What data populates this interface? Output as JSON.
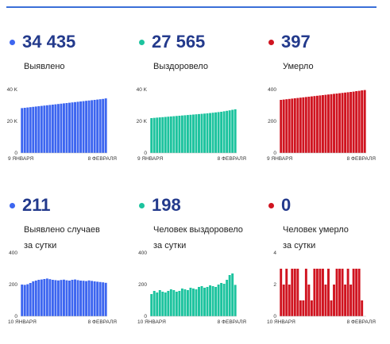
{
  "colors": {
    "blue": "#3d66f0",
    "green": "#1cc39e",
    "red": "#d01420",
    "header_line": "#3a6fd8",
    "value_text": "#233a8c"
  },
  "panels": [
    {
      "id": "detected-total",
      "value": "34 435",
      "label": [
        "Выявлено"
      ],
      "color": "blue",
      "chart_data": {
        "type": "bar",
        "ylim": [
          0,
          40000
        ],
        "yticks": [
          {
            "v": 0,
            "label": "0"
          },
          {
            "v": 20000,
            "label": "20 K"
          },
          {
            "v": 40000,
            "label": "40 K"
          }
        ],
        "xlabels": [
          "9 ЯНВАРЯ",
          "8 ФЕВРАЛЯ"
        ],
        "values": [
          28300,
          28500,
          28700,
          28900,
          29100,
          29300,
          29500,
          29700,
          29900,
          30100,
          30300,
          30500,
          30700,
          30900,
          31100,
          31300,
          31500,
          31700,
          31900,
          32100,
          32300,
          32500,
          32700,
          32900,
          33100,
          33300,
          33500,
          33700,
          33900,
          34100,
          34435
        ]
      }
    },
    {
      "id": "recovered-total",
      "value": "27 565",
      "label": [
        "Выздоровело"
      ],
      "color": "green",
      "chart_data": {
        "type": "bar",
        "ylim": [
          0,
          40000
        ],
        "yticks": [
          {
            "v": 0,
            "label": "0"
          },
          {
            "v": 20000,
            "label": "20 K"
          },
          {
            "v": 40000,
            "label": "40 K"
          }
        ],
        "xlabels": [
          "9 ЯНВАРЯ",
          "8 ФЕВРАЛЯ"
        ],
        "values": [
          22000,
          22150,
          22300,
          22450,
          22600,
          22750,
          22900,
          23050,
          23200,
          23350,
          23500,
          23650,
          23800,
          23950,
          24100,
          24250,
          24400,
          24550,
          24700,
          24850,
          25000,
          25200,
          25400,
          25600,
          25800,
          26000,
          26300,
          26600,
          26900,
          27250,
          27565
        ]
      }
    },
    {
      "id": "deaths-total",
      "value": "397",
      "label": [
        "Умерло"
      ],
      "color": "red",
      "chart_data": {
        "type": "bar",
        "ylim": [
          0,
          400
        ],
        "yticks": [
          {
            "v": 0,
            "label": "0"
          },
          {
            "v": 200,
            "label": "200"
          },
          {
            "v": 400,
            "label": "400"
          }
        ],
        "xlabels": [
          "9 ЯНВАРЯ",
          "8 ФЕВРАЛЯ"
        ],
        "values": [
          335,
          337,
          339,
          341,
          343,
          345,
          347,
          349,
          351,
          353,
          355,
          357,
          359,
          361,
          363,
          365,
          367,
          369,
          371,
          373,
          375,
          377,
          379,
          381,
          383,
          385,
          387,
          390,
          392,
          395,
          397
        ]
      }
    },
    {
      "id": "detected-daily",
      "value": "211",
      "label": [
        "Выявлено случаев",
        "за сутки"
      ],
      "color": "blue",
      "chart_data": {
        "type": "bar",
        "ylim": [
          0,
          400
        ],
        "yticks": [
          {
            "v": 0,
            "label": "0"
          },
          {
            "v": 200,
            "label": "200"
          },
          {
            "v": 400,
            "label": "400"
          }
        ],
        "xlabels": [
          "10 ЯНВАРЯ",
          "8 ФЕВРАЛЯ"
        ],
        "values": [
          200,
          198,
          202,
          210,
          220,
          225,
          230,
          232,
          235,
          238,
          234,
          230,
          228,
          226,
          229,
          231,
          227,
          225,
          230,
          232,
          228,
          225,
          224,
          222,
          226,
          223,
          220,
          218,
          216,
          214,
          211
        ]
      }
    },
    {
      "id": "recovered-daily",
      "value": "198",
      "label": [
        "Человек выздоровело",
        "за сутки"
      ],
      "color": "green",
      "chart_data": {
        "type": "bar",
        "ylim": [
          0,
          400
        ],
        "yticks": [
          {
            "v": 0,
            "label": "0"
          },
          {
            "v": 200,
            "label": "200"
          },
          {
            "v": 400,
            "label": "400"
          }
        ],
        "xlabels": [
          "10 ЯНВАРЯ",
          "8 ФЕВРАЛЯ"
        ],
        "values": [
          140,
          160,
          150,
          165,
          155,
          150,
          160,
          170,
          165,
          155,
          160,
          175,
          170,
          165,
          180,
          175,
          170,
          185,
          190,
          180,
          185,
          195,
          190,
          185,
          200,
          210,
          205,
          230,
          260,
          270,
          198
        ]
      }
    },
    {
      "id": "deaths-daily",
      "value": "0",
      "label": [
        "Человек умерло",
        "за сутки"
      ],
      "color": "red",
      "chart_data": {
        "type": "bar",
        "ylim": [
          0,
          4
        ],
        "yticks": [
          {
            "v": 0,
            "label": "0"
          },
          {
            "v": 2,
            "label": "2"
          },
          {
            "v": 4,
            "label": "4"
          }
        ],
        "xlabels": [
          "10 ЯНВАРЯ",
          "8 ФЕВРАЛЯ"
        ],
        "values": [
          3,
          2,
          3,
          2,
          3,
          3,
          3,
          1,
          1,
          3,
          2,
          1,
          3,
          3,
          3,
          3,
          2,
          3,
          1,
          2,
          3,
          3,
          3,
          2,
          3,
          2,
          3,
          3,
          3,
          1,
          0
        ]
      }
    }
  ]
}
